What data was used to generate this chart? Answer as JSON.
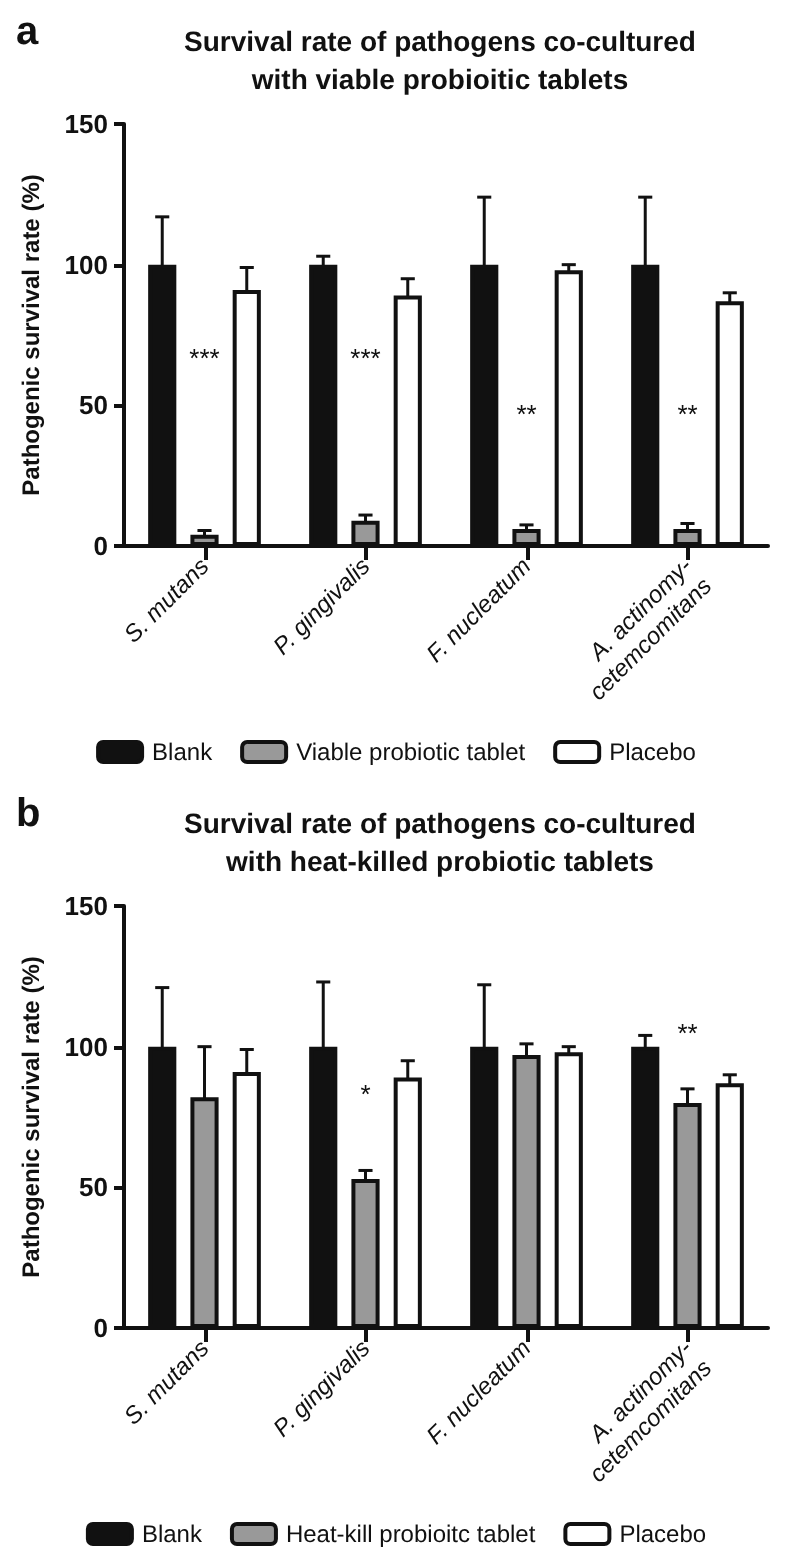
{
  "chart_data": [
    {
      "type": "bar",
      "title": "Survival rate of pathogens co-cultured\nwith viable probioitic tablets",
      "ylabel": "Pathogenic survival rate (%)",
      "annotations": [
        "a",
        "***",
        "***",
        "**",
        "**"
      ],
      "categories": [
        "S. mutans",
        "P. gingivalis",
        "F. nucleatum",
        "A. actinomy-\ncetemcomitans"
      ],
      "series": [
        {
          "name": "Blank",
          "color": "#111111",
          "values": [
            100,
            100,
            100,
            100
          ],
          "errors": [
            17,
            3,
            24,
            24
          ]
        },
        {
          "name": "Viable probiotic tablet",
          "color": "#999999",
          "values": [
            4,
            9,
            6,
            6
          ],
          "errors": [
            1.5,
            2,
            1.5,
            2
          ]
        },
        {
          "name": "Placebo",
          "color": "#ffffff",
          "values": [
            91,
            89,
            98,
            87
          ],
          "errors": [
            8,
            6,
            2,
            3
          ]
        }
      ],
      "ylim": [
        0,
        150
      ],
      "yticks": [
        0,
        50,
        100,
        150
      ],
      "grid": false,
      "legend": "bottom"
    },
    {
      "type": "bar",
      "title": "Survival rate of pathogens co-cultured\nwith heat-killed probiotic tablets",
      "ylabel": "Pathogenic survival rate (%)",
      "annotations": [
        "b",
        "*",
        "**"
      ],
      "categories": [
        "S. mutans",
        "P. gingivalis",
        "F. nucleatum",
        "A. actinomy-\ncetemcomitans"
      ],
      "series": [
        {
          "name": "Blank",
          "color": "#111111",
          "values": [
            100,
            100,
            100,
            100
          ],
          "errors": [
            21,
            23,
            22,
            4
          ]
        },
        {
          "name": "Heat-kill probioitc tablet",
          "color": "#999999",
          "values": [
            82,
            53,
            97,
            80
          ],
          "errors": [
            18,
            3,
            4,
            5
          ]
        },
        {
          "name": "Placebo",
          "color": "#ffffff",
          "values": [
            91,
            89,
            98,
            87
          ],
          "errors": [
            8,
            6,
            2,
            3
          ]
        }
      ],
      "ylim": [
        0,
        150
      ],
      "yticks": [
        0,
        50,
        100,
        150
      ],
      "grid": false,
      "legend": "bottom"
    }
  ]
}
